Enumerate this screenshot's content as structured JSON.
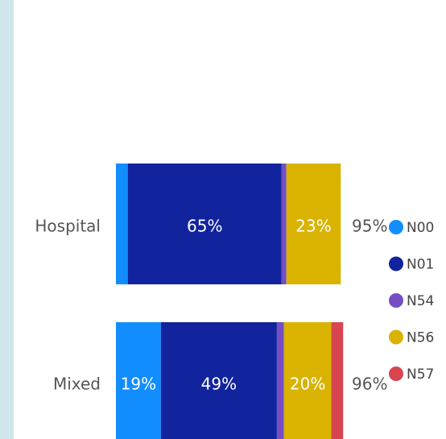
{
  "chart_data": {
    "type": "stacked-bar-horizontal",
    "categories": [
      "Hospital",
      "Mixed"
    ],
    "xlim": [
      0,
      100
    ],
    "series": [
      {
        "name": "N00",
        "color": "#118DFF",
        "values": [
          5,
          19
        ],
        "value_labels": [
          null,
          "19%"
        ]
      },
      {
        "name": "N01",
        "color": "#12239E",
        "values": [
          65,
          49
        ],
        "value_labels": [
          "65%",
          "49%"
        ]
      },
      {
        "name": "N54",
        "color": "#744EC2",
        "values": [
          2,
          3
        ],
        "value_labels": [
          null,
          null
        ]
      },
      {
        "name": "N56",
        "color": "#D9B300",
        "values": [
          23,
          20
        ],
        "value_labels": [
          "23%",
          "20%"
        ]
      },
      {
        "name": "N57",
        "color": "#D64550",
        "values": [
          0,
          5
        ],
        "value_labels": [
          null,
          null
        ]
      }
    ],
    "totals": {
      "values": [
        95,
        96
      ],
      "value_labels": [
        "95%",
        "96%"
      ]
    }
  }
}
